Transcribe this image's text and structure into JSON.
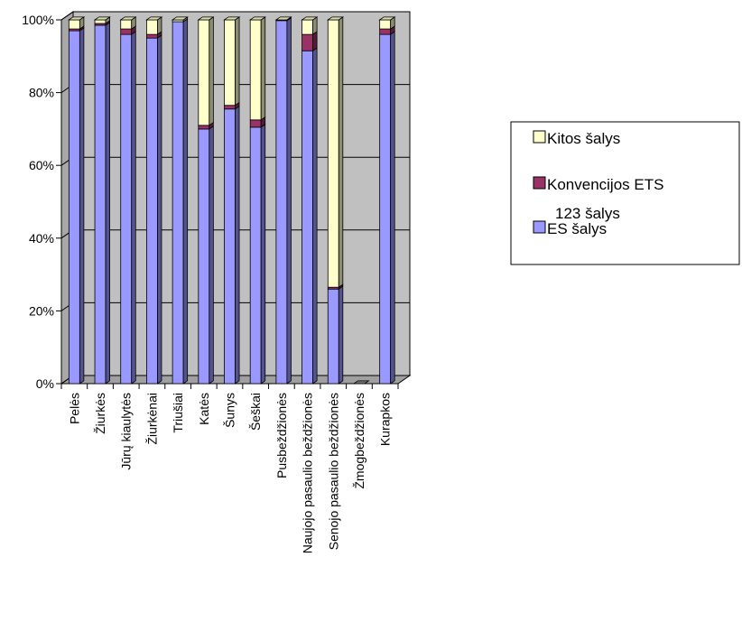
{
  "chart_data": {
    "type": "bar",
    "stacked": true,
    "percent_stacked": true,
    "three_d": true,
    "categories": [
      "Pelės",
      "Žiurkės",
      "Jūrų kiaulytės",
      "Žiurkėnai",
      "Triušiai",
      "Katės",
      "Šunys",
      "Šeškai",
      "Pusbeždžionės",
      "Naujojo pasaulio beždžionės",
      "Senojo pasaulio beždžionės",
      "Žmogbeždžionės",
      "Kurapkos"
    ],
    "series": [
      {
        "name": "ES šalys",
        "color": "#9999FF",
        "values": [
          97,
          98.5,
          96,
          95,
          99.5,
          70,
          75.5,
          70.5,
          99.8,
          91.5,
          26,
          0,
          96
        ]
      },
      {
        "name": "Konvencijos ETS 123 šalys",
        "color": "#993366",
        "values": [
          0.5,
          0.5,
          1.5,
          1,
          0,
          1,
          1,
          2,
          0,
          4.5,
          0.5,
          0,
          1.5
        ]
      },
      {
        "name": "Kitos šalys",
        "color": "#FFFFCC",
        "values": [
          2.5,
          1,
          2.5,
          4,
          0.5,
          29,
          23.5,
          27.5,
          0.2,
          4,
          73.5,
          0,
          2.5
        ]
      }
    ],
    "ylim": [
      0,
      100
    ],
    "yticks": [
      "0%",
      "20%",
      "40%",
      "60%",
      "80%",
      "100%"
    ],
    "legend_position": "right",
    "grid": true,
    "wall_color": "#C0C0C0"
  },
  "legend": {
    "items": [
      {
        "label": "Kitos šalys",
        "color": "#FFFFCC"
      },
      {
        "label": "Konvencijos ETS 123 šalys",
        "color": "#993366"
      },
      {
        "label": "ES šalys",
        "color": "#9999FF"
      }
    ]
  }
}
